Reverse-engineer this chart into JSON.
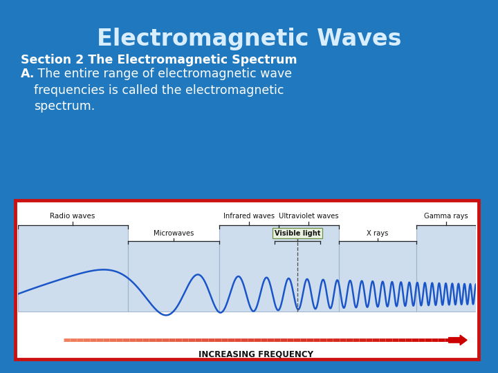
{
  "title": "Electromagnetic Waves",
  "section_text": "Section 2 The Electromagnetic Spectrum",
  "body_text_bold": "A.",
  "body_text": " The entire range of electromagnetic wave\nfrequencies is called the electromagnetic\nspectrum.",
  "bg_color": "#2079be",
  "title_color": "#d8eeff",
  "section_color": "#ffffff",
  "body_color": "#ffffff",
  "diagram_bg": "#ffffff",
  "diagram_border": "#cc1111",
  "wave_color": "#1a55c8",
  "freq_arrow_color_start": "#dd4422",
  "freq_arrow_color_end": "#cc0000",
  "freq_text": "INCREASING FREQUENCY",
  "band_fill": "#c5d8ec",
  "band_edge": "#9aafca"
}
